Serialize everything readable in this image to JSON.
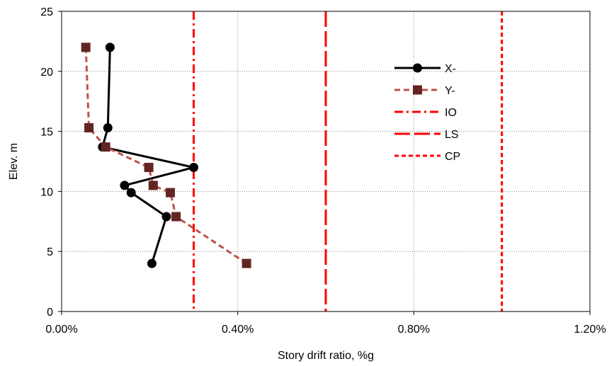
{
  "chart_data": {
    "type": "line",
    "xlabel": "Story drift ratio, %g",
    "ylabel": "Elev. m",
    "xlim": [
      0,
      0.012
    ],
    "ylim": [
      0,
      25
    ],
    "x_ticks": [
      0,
      0.004,
      0.008,
      0.012
    ],
    "x_tick_labels": [
      "0.00%",
      "0.40%",
      "0.80%",
      "1.20%"
    ],
    "y_ticks": [
      0,
      5,
      10,
      15,
      20,
      25
    ],
    "y_tick_labels": [
      "0",
      "5",
      "10",
      "15",
      "20",
      "25"
    ],
    "grid": "dotted",
    "legend_position": "right",
    "series": [
      {
        "name": "X-",
        "color": "#000000",
        "style": "solid",
        "marker": "circle",
        "x": [
          0.0011,
          0.00105,
          0.00093,
          0.003,
          0.00143,
          0.00158,
          0.00238,
          0.00205
        ],
        "y": [
          22,
          15.3,
          13.7,
          12,
          10.5,
          9.9,
          7.9,
          4
        ]
      },
      {
        "name": "Y-",
        "color": "#C0504D",
        "marker_color": "#632523",
        "style": "dashed",
        "marker": "square",
        "x": [
          0.00055,
          0.00062,
          0.001,
          0.00198,
          0.00208,
          0.00247,
          0.0026,
          0.0042
        ],
        "y": [
          22,
          15.3,
          13.7,
          12,
          10.5,
          9.9,
          7.9,
          4
        ]
      }
    ],
    "reference_lines": [
      {
        "name": "IO",
        "x": 0.003,
        "color": "#FF0000",
        "style": "dash-dot"
      },
      {
        "name": "LS",
        "x": 0.006,
        "color": "#FF0000",
        "style": "long-dash"
      },
      {
        "name": "CP",
        "x": 0.01,
        "color": "#FF0000",
        "style": "short-dash"
      }
    ]
  }
}
